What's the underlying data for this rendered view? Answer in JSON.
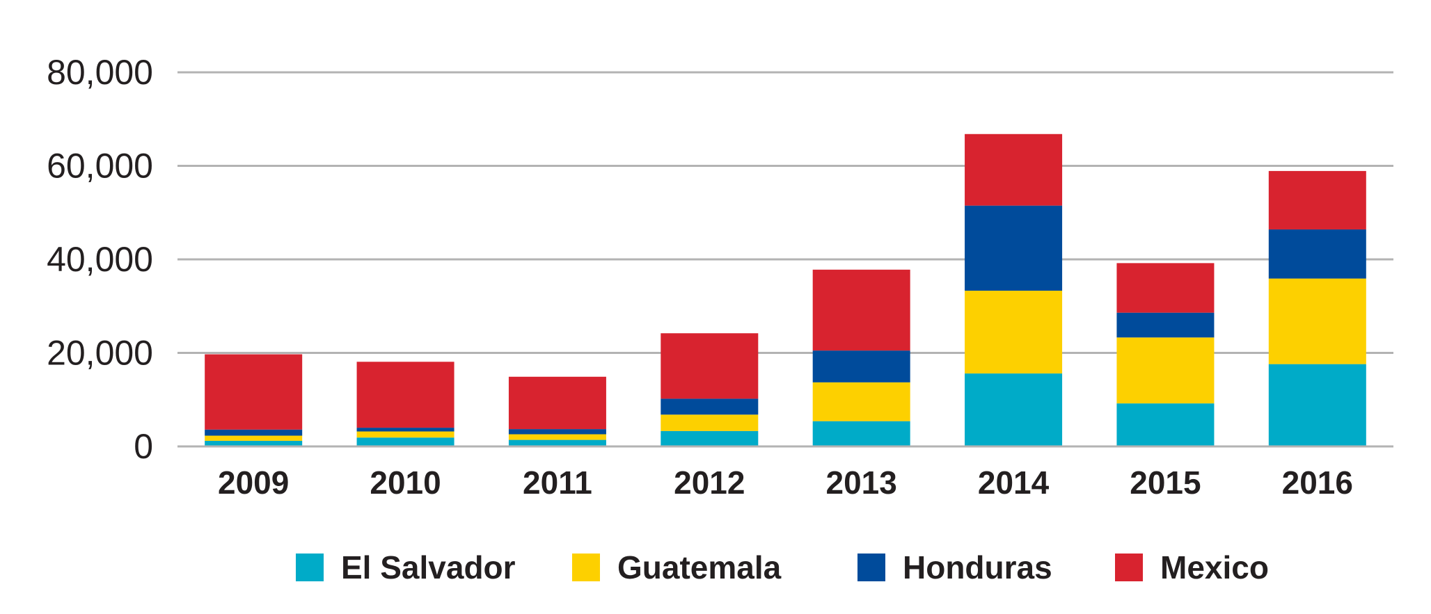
{
  "chart_data": {
    "type": "bar",
    "stacked": true,
    "categories": [
      "2009",
      "2010",
      "2011",
      "2012",
      "2013",
      "2014",
      "2015",
      "2016"
    ],
    "series": [
      {
        "name": "El Salvador",
        "color": "#00abc8",
        "values": [
          1200,
          1900,
          1400,
          3300,
          5400,
          15600,
          9200,
          17600
        ]
      },
      {
        "name": "Guatemala",
        "color": "#fdd000",
        "values": [
          1100,
          1300,
          1200,
          3500,
          8300,
          17700,
          14100,
          18300
        ]
      },
      {
        "name": "Honduras",
        "color": "#004b9b",
        "values": [
          1300,
          800,
          1100,
          3400,
          6800,
          18200,
          5300,
          10500
        ]
      },
      {
        "name": "Mexico",
        "color": "#d8232f",
        "values": [
          16100,
          14100,
          11200,
          14000,
          17300,
          15300,
          10600,
          12500
        ]
      }
    ],
    "yticks": [
      0,
      20000,
      40000,
      60000,
      80000
    ],
    "ytick_labels": [
      "0",
      "20,000",
      "40,000",
      "60,000",
      "80,000"
    ],
    "ylim": [
      0,
      80000
    ],
    "grid": true,
    "legend": "bottom",
    "gridline_color": "#b3b3b3"
  }
}
